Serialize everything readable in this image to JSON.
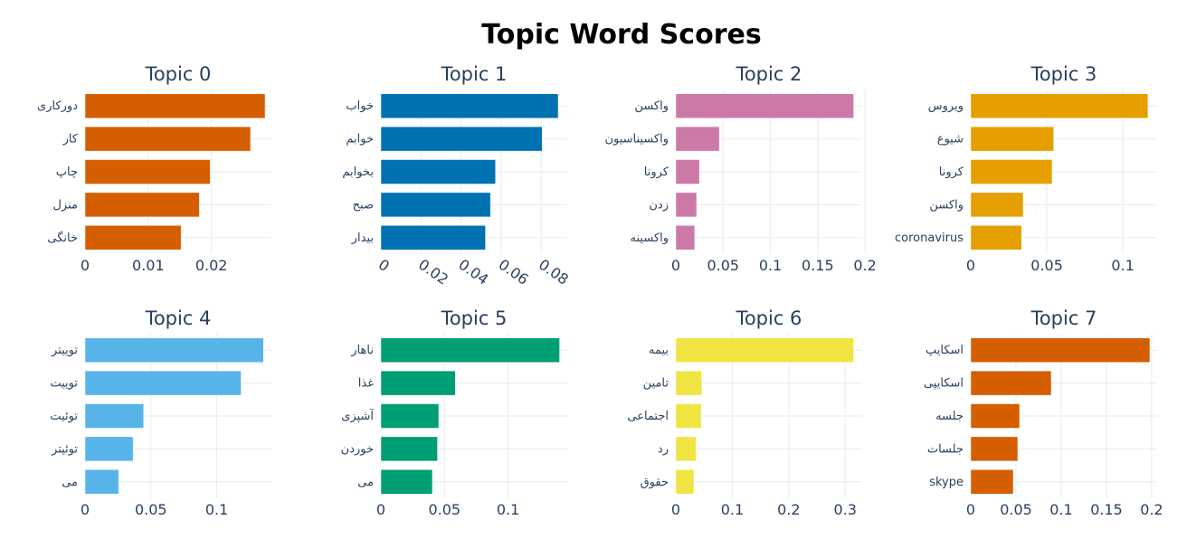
{
  "title": "Topic Word Scores",
  "chart_data": {
    "type": "bar",
    "orientation": "horizontal",
    "title": "Topic Word Scores",
    "grid": true,
    "panels": [
      {
        "name": "Topic 0",
        "color": "#d55e00",
        "words": [
          "دورکاری",
          "کار",
          "چاپ",
          "منزل",
          "خانگی"
        ],
        "values": [
          0.0285,
          0.0262,
          0.0198,
          0.0181,
          0.0152
        ],
        "xmax": 0.0295,
        "xticks": [
          0,
          0.01,
          0.02
        ],
        "xtick_labels": [
          "0",
          "0.01",
          "0.02"
        ],
        "rotate": false
      },
      {
        "name": "Topic 1",
        "color": "#0072b2",
        "words": [
          "خواب",
          "خوابم",
          "بخوابم",
          "صبح",
          "بیدار"
        ],
        "values": [
          0.0885,
          0.0805,
          0.0572,
          0.0547,
          0.0522
        ],
        "xmax": 0.093,
        "xticks": [
          0,
          0.02,
          0.04,
          0.06,
          0.08
        ],
        "xtick_labels": [
          "0",
          "0.02",
          "0.04",
          "0.06",
          "0.08"
        ],
        "rotate": true
      },
      {
        "name": "Topic 2",
        "color": "#cc79a7",
        "words": [
          "واکسن",
          "واکسیناسیون",
          "کرونا",
          "زدن",
          "واکسینه"
        ],
        "values": [
          0.188,
          0.046,
          0.025,
          0.022,
          0.02
        ],
        "xmax": 0.197,
        "xticks": [
          0,
          0.05,
          0.1,
          0.15,
          0.2
        ],
        "xtick_labels": [
          "0",
          "0.05",
          "0.1",
          "0.15",
          "0.2"
        ],
        "rotate": false
      },
      {
        "name": "Topic 3",
        "color": "#e69f00",
        "words": [
          "ویروس",
          "شیوع",
          "کرونا",
          "واکسن",
          "coronavirus"
        ],
        "values": [
          0.1165,
          0.0545,
          0.0535,
          0.0345,
          0.0335
        ],
        "xmax": 0.1225,
        "xticks": [
          0,
          0.05,
          0.1
        ],
        "xtick_labels": [
          "0",
          "0.05",
          "0.1"
        ],
        "rotate": false
      },
      {
        "name": "Topic 4",
        "color": "#56b4e9",
        "words": [
          "توییتر",
          "توییت",
          "توئیت",
          "توئیتر",
          "می"
        ],
        "values": [
          0.1355,
          0.1185,
          0.0445,
          0.0365,
          0.0255
        ],
        "xmax": 0.1415,
        "xticks": [
          0,
          0.05,
          0.1
        ],
        "xtick_labels": [
          "0",
          "0.05",
          "0.1"
        ],
        "rotate": false
      },
      {
        "name": "Topic 5",
        "color": "#009e73",
        "words": [
          "ناهار",
          "غذا",
          "آشپزی",
          "خوردن",
          "می"
        ],
        "values": [
          0.1405,
          0.0585,
          0.0455,
          0.0445,
          0.0405
        ],
        "xmax": 0.1465,
        "xticks": [
          0,
          0.05,
          0.1
        ],
        "xtick_labels": [
          "0",
          "0.05",
          "0.1"
        ],
        "rotate": false
      },
      {
        "name": "Topic 6",
        "color": "#f0e442",
        "words": [
          "بیمه",
          "تامین",
          "اجتماعی",
          "رد",
          "حقوق"
        ],
        "values": [
          0.315,
          0.046,
          0.045,
          0.036,
          0.032
        ],
        "xmax": 0.33,
        "xticks": [
          0,
          0.1,
          0.2,
          0.3
        ],
        "xtick_labels": [
          "0",
          "0.1",
          "0.2",
          "0.3"
        ],
        "rotate": false
      },
      {
        "name": "Topic 7",
        "color": "#d55e00",
        "words": [
          "اسکایپ",
          "اسکایپی",
          "جلسه",
          "جلسات",
          "skype"
        ],
        "values": [
          0.198,
          0.089,
          0.054,
          0.052,
          0.047
        ],
        "xmax": 0.206,
        "xticks": [
          0,
          0.05,
          0.1,
          0.15,
          0.2
        ],
        "xtick_labels": [
          "0",
          "0.05",
          "0.1",
          "0.15",
          "0.2"
        ],
        "rotate": false
      }
    ]
  }
}
